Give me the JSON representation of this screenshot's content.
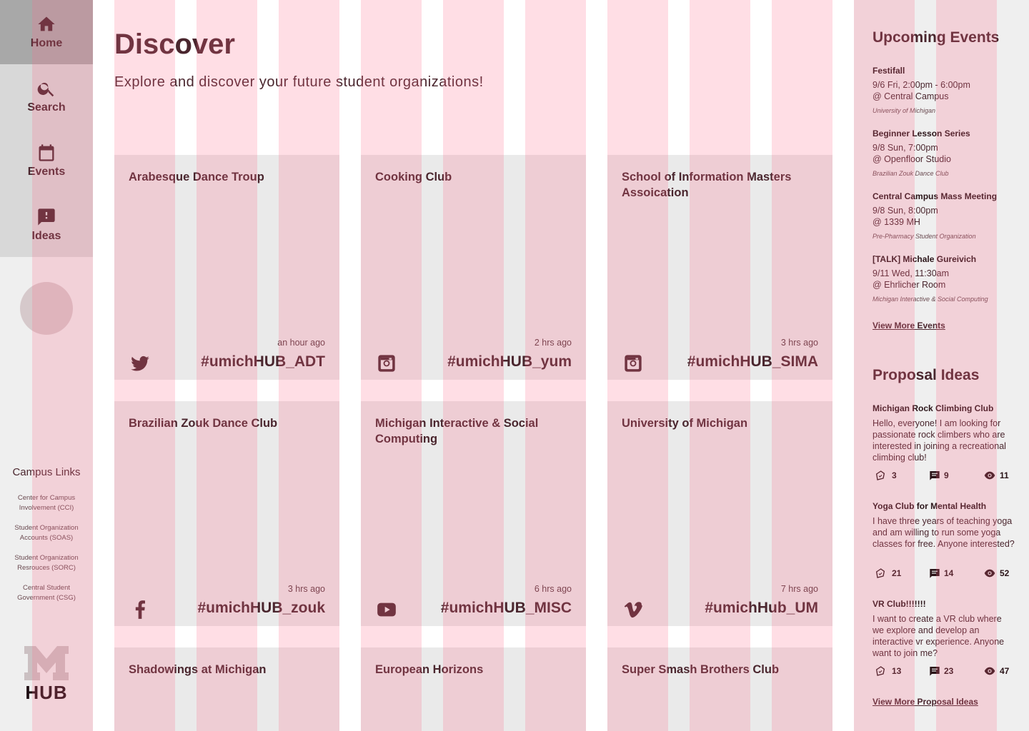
{
  "nav": {
    "items": [
      {
        "label": "Home",
        "icon": "home-icon"
      },
      {
        "label": "Search",
        "icon": "search-icon"
      },
      {
        "label": "Events",
        "icon": "calendar-icon"
      },
      {
        "label": "Ideas",
        "icon": "idea-icon"
      }
    ],
    "campus_links_title": "Campus Links",
    "campus_links": [
      "Center for Campus Involvement (CCI)",
      "Student Organization Accounts (SOAS)",
      "Student Organization Resrouces (SORC)",
      "Central Student Government (CSG)"
    ],
    "logo_text": "HUB"
  },
  "main": {
    "title": "Discover",
    "subtitle": "Explore and discover your future student organizations!",
    "cards": [
      {
        "name": "Arabesque Dance Troup",
        "time": "an hour ago",
        "tag": "#umichHUB_ADT",
        "platform": "twitter-icon"
      },
      {
        "name": "Cooking Club",
        "time": "2 hrs ago",
        "tag": "#umichHUB_yum",
        "platform": "instagram-icon"
      },
      {
        "name": "School of Information Masters Assoication",
        "time": "3 hrs ago",
        "tag": "#umichHUB_SIMA",
        "platform": "instagram-icon"
      },
      {
        "name": "Brazilian Zouk Dance Club",
        "time": "3 hrs ago",
        "tag": "#umichHUB_zouk",
        "platform": "facebook-icon"
      },
      {
        "name": "Michigan Interactive & Social Computing",
        "time": "6 hrs ago",
        "tag": "#umichHUB_MISC",
        "platform": "youtube-icon"
      },
      {
        "name": "University of Michigan",
        "time": "7 hrs ago",
        "tag": "#umichHub_UM",
        "platform": "vimeo-icon"
      },
      {
        "name": "Shadowings at Michigan"
      },
      {
        "name": "European Horizons"
      },
      {
        "name": "Super Smash Brothers Club"
      }
    ]
  },
  "events": {
    "title": "Upcoming Events",
    "items": [
      {
        "name": "Festifall",
        "when": "9/6 Fri, 2:00pm - 6:00pm",
        "where": "@ Central Campus",
        "org": "University of Michigan"
      },
      {
        "name": "Beginner Lesson Series",
        "when": "9/8 Sun, 7:00pm",
        "where": "@ Openfloor Studio",
        "org": "Brazilian Zouk Dance Club"
      },
      {
        "name": "Central Campus Mass Meeting",
        "when": "9/8 Sun, 8:00pm",
        "where": "@ 1339 MH",
        "org": "Pre-Pharmacy Student Organization"
      },
      {
        "name": "[TALK] Michale Gureivich",
        "when": "9/11 Wed, 11:30am",
        "where": "@ Ehrlicher Room",
        "org": "Michigan Interactive & Social Computing"
      }
    ],
    "view_more": "View More Events"
  },
  "ideas": {
    "title": "Proposal Ideas",
    "items": [
      {
        "name": "Michigan Rock Climbing Club",
        "body": "Hello, everyone! I am looking for passionate rock climbers who are interested in joining a recreational climbing club!",
        "likes": "3",
        "comments": "9",
        "views": "11"
      },
      {
        "name": "Yoga Club for Mental Health",
        "body": "I have three years of teaching yoga and am willing to run some yoga classes for free. Anyone interested?",
        "likes": "21",
        "comments": "14",
        "views": "52"
      },
      {
        "name": "VR Club!!!!!!!",
        "body": "I want to create a VR club where we explore and develop an interactive vr experience. Anyone want to join me?",
        "likes": "13",
        "comments": "23",
        "views": "47"
      }
    ],
    "view_more": "View More Proposal Ideas"
  },
  "colors": {
    "text": "#4a262e",
    "grid_overlay": "#ff6987",
    "card_bg": "#eaeaea",
    "sidebar_bg": "#efefef",
    "nav_active_bg": "#a8a8a8"
  }
}
